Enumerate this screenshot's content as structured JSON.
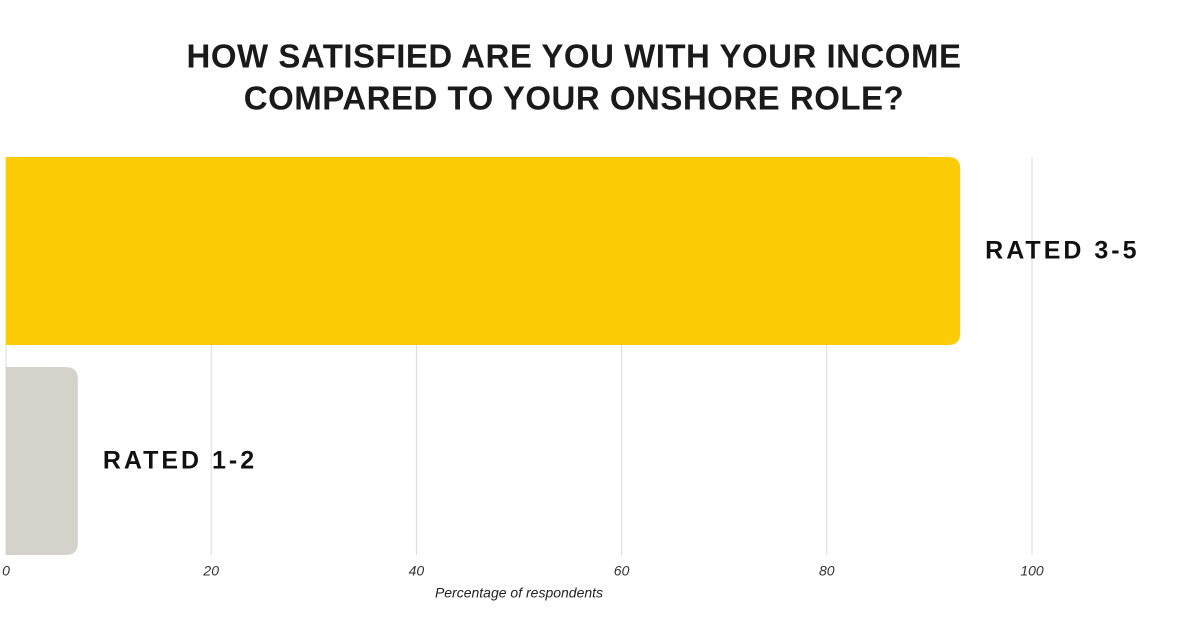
{
  "chart_data": {
    "type": "hbar",
    "title": [
      "HOW SATISFIED ARE YOU WITH YOUR INCOME",
      "COMPARED TO YOUR ONSHORE ROLE?"
    ],
    "categories": [
      "RATED 3-5",
      "RATED 1-2"
    ],
    "values": [
      93,
      7
    ],
    "colors": [
      "#fccc07",
      "#d5d2cc"
    ],
    "xlim": [
      0,
      100
    ],
    "xticks": [
      0,
      20,
      40,
      60,
      80,
      100
    ],
    "x_label": "Percentage of respondents",
    "grid": true
  }
}
